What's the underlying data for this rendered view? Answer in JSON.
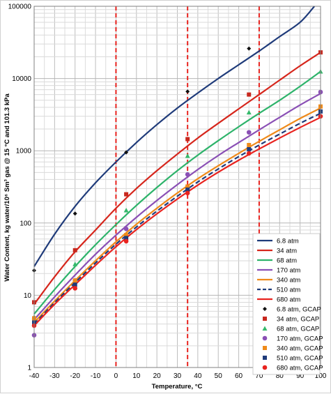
{
  "chart_data": {
    "type": "line",
    "xlabel": "Temperature, °C",
    "ylabel": "Water Content, kg water/10⁶ Sm³ gas @ 15 °C and 101.3 kPa",
    "xlim": [
      -40,
      100
    ],
    "ylim": [
      1,
      100000
    ],
    "y_scale": "log",
    "grid": true,
    "legend_placement": "bottom-right",
    "x_ticks": [
      "-40",
      "-30",
      "-20",
      "-10",
      "0",
      "10",
      "20",
      "30",
      "40",
      "50",
      "60",
      "70",
      "80",
      "90",
      "100"
    ],
    "y_ticks": [
      "1",
      "10",
      "100",
      "1000",
      "10000",
      "100000"
    ],
    "vertical_reference_lines": {
      "color": "#e8231f",
      "style": "dashed",
      "x": [
        0,
        35,
        70
      ]
    },
    "series": [
      {
        "name": "6.8 atm",
        "kind": "line",
        "color": "#1f3b7a",
        "dash": false,
        "x": [
          -40,
          -30,
          -20,
          -10,
          0,
          10,
          20,
          30,
          40,
          50,
          60,
          70,
          80,
          90,
          97
        ],
        "y": [
          25,
          70,
          170,
          360,
          700,
          1300,
          2300,
          3900,
          6300,
          10000,
          15500,
          24000,
          38000,
          60000,
          100000
        ]
      },
      {
        "name": "34 atm",
        "kind": "line",
        "color": "#d6261c",
        "dash": false,
        "x": [
          -40,
          -30,
          -20,
          -10,
          0,
          10,
          20,
          30,
          40,
          50,
          60,
          70,
          80,
          90,
          100
        ],
        "y": [
          7.5,
          18,
          40,
          80,
          160,
          300,
          530,
          900,
          1500,
          2400,
          3800,
          6000,
          9500,
          15000,
          23000
        ]
      },
      {
        "name": "68 atm",
        "kind": "line",
        "color": "#2db36a",
        "dash": false,
        "x": [
          -40,
          -30,
          -20,
          -10,
          0,
          10,
          20,
          30,
          40,
          50,
          60,
          70,
          80,
          90,
          100
        ],
        "y": [
          5.5,
          12,
          25,
          50,
          95,
          175,
          310,
          530,
          870,
          1380,
          2150,
          3300,
          5000,
          7800,
          12500
        ]
      },
      {
        "name": "170 atm",
        "kind": "line",
        "color": "#8a4fb5",
        "dash": false,
        "x": [
          -40,
          -30,
          -20,
          -10,
          0,
          10,
          20,
          30,
          40,
          50,
          60,
          70,
          80,
          90,
          100
        ],
        "y": [
          4.6,
          9.5,
          19,
          37,
          68,
          120,
          205,
          340,
          550,
          860,
          1300,
          1950,
          2900,
          4300,
          6200
        ]
      },
      {
        "name": "340 atm",
        "kind": "line",
        "color": "#ef8a1a",
        "dash": false,
        "x": [
          -40,
          -30,
          -20,
          -10,
          0,
          10,
          20,
          30,
          40,
          50,
          60,
          70,
          80,
          90,
          100
        ],
        "y": [
          4.2,
          8.3,
          16,
          30,
          55,
          96,
          160,
          260,
          410,
          620,
          920,
          1350,
          1950,
          2800,
          3900
        ]
      },
      {
        "name": "510 atm",
        "kind": "line",
        "color": "#1f3b7a",
        "dash": true,
        "x": [
          -40,
          -30,
          -20,
          -10,
          0,
          10,
          20,
          30,
          40,
          50,
          60,
          70,
          80,
          90,
          100
        ],
        "y": [
          4.0,
          7.9,
          15,
          28,
          51,
          88,
          146,
          235,
          370,
          560,
          830,
          1200,
          1700,
          2400,
          3300
        ]
      },
      {
        "name": "680 atm",
        "kind": "line",
        "color": "#e8231f",
        "dash": false,
        "x": [
          -40,
          -30,
          -20,
          -10,
          0,
          10,
          20,
          30,
          40,
          50,
          60,
          70,
          80,
          90,
          100
        ],
        "y": [
          3.8,
          7.5,
          14,
          26,
          47,
          81,
          134,
          215,
          335,
          505,
          740,
          1060,
          1500,
          2100,
          2900
        ]
      },
      {
        "name": "6.8 atm, GCAP",
        "kind": "marker",
        "marker": "diamond",
        "color": "#111111",
        "x": [
          -40,
          -20,
          5,
          35,
          65
        ],
        "y": [
          22,
          135,
          950,
          6600,
          26000
        ]
      },
      {
        "name": "34 atm, GCAP",
        "kind": "marker",
        "marker": "square",
        "color": "#c8281e",
        "x": [
          -40,
          -20,
          5,
          35,
          65,
          100
        ],
        "y": [
          8,
          42,
          250,
          1450,
          6000,
          23000
        ]
      },
      {
        "name": "68 atm, GCAP",
        "kind": "marker",
        "marker": "triangle",
        "color": "#35b96b",
        "x": [
          -40,
          -20,
          5,
          35,
          65,
          100
        ],
        "y": [
          5,
          27,
          150,
          850,
          3400,
          12500
        ]
      },
      {
        "name": "170 atm, GCAP",
        "kind": "marker",
        "marker": "circle",
        "color": "#8a4fb5",
        "x": [
          -40,
          -20,
          5,
          35,
          65,
          100
        ],
        "y": [
          2.8,
          16,
          83,
          470,
          1800,
          6500
        ]
      },
      {
        "name": "340 atm, GCAP",
        "kind": "marker",
        "marker": "square",
        "color": "#ef8a1a",
        "x": [
          -40,
          -20,
          5,
          35,
          65,
          100
        ],
        "y": [
          4.8,
          16,
          68,
          320,
          1200,
          4100
        ]
      },
      {
        "name": "510 atm, GCAP",
        "kind": "marker",
        "marker": "square",
        "color": "#1f3b7a",
        "x": [
          -40,
          -20,
          5,
          35,
          65,
          100
        ],
        "y": [
          4.2,
          14,
          62,
          290,
          1050,
          3500
        ]
      },
      {
        "name": "680 atm, GCAP",
        "kind": "marker",
        "marker": "circle",
        "color": "#e8231f",
        "x": [
          -40,
          -20,
          5,
          35,
          65,
          100
        ],
        "y": [
          3.8,
          12.5,
          56,
          260,
          920,
          3000
        ]
      }
    ]
  }
}
